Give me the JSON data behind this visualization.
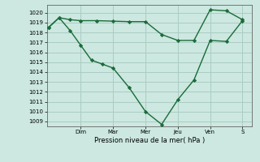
{
  "bg_color": "#cce8e0",
  "grid_color": "#aaccc4",
  "line_color": "#1a6b3a",
  "xlabel": "Pression niveau de la mer( hPa )",
  "ylim": [
    1008.5,
    1020.8
  ],
  "yticks": [
    1009,
    1010,
    1011,
    1012,
    1013,
    1014,
    1015,
    1016,
    1017,
    1018,
    1019,
    1020
  ],
  "day_labels": [
    "Dim",
    "Mar",
    "Mer",
    "Jeu",
    "Ven",
    "S"
  ],
  "day_positions": [
    1.0,
    2.0,
    3.0,
    4.0,
    5.0,
    6.0
  ],
  "xlim": [
    -0.05,
    6.3
  ],
  "line1_x": [
    0.0,
    0.33,
    0.67,
    1.0,
    1.5,
    2.0,
    2.5,
    3.0,
    3.5,
    4.0,
    4.5,
    5.0,
    5.5,
    6.0
  ],
  "line1_y": [
    1018.5,
    1019.5,
    1019.3,
    1019.2,
    1019.2,
    1019.15,
    1019.1,
    1019.1,
    1017.8,
    1017.2,
    1017.2,
    1020.3,
    1020.2,
    1019.3
  ],
  "line2_x": [
    0.0,
    0.33,
    0.67,
    1.0,
    1.33,
    1.67,
    2.0,
    2.5,
    3.0,
    3.5,
    4.0,
    4.5,
    5.0,
    5.5,
    6.0
  ],
  "line2_y": [
    1018.5,
    1019.5,
    1018.2,
    1016.7,
    1015.2,
    1014.8,
    1014.4,
    1012.4,
    1010.0,
    1008.7,
    1011.2,
    1013.2,
    1017.2,
    1017.1,
    1019.2
  ],
  "marker": "D",
  "markersize": 2.2,
  "linewidth": 1.0,
  "xlabel_fontsize": 6.0,
  "tick_fontsize": 5.0
}
